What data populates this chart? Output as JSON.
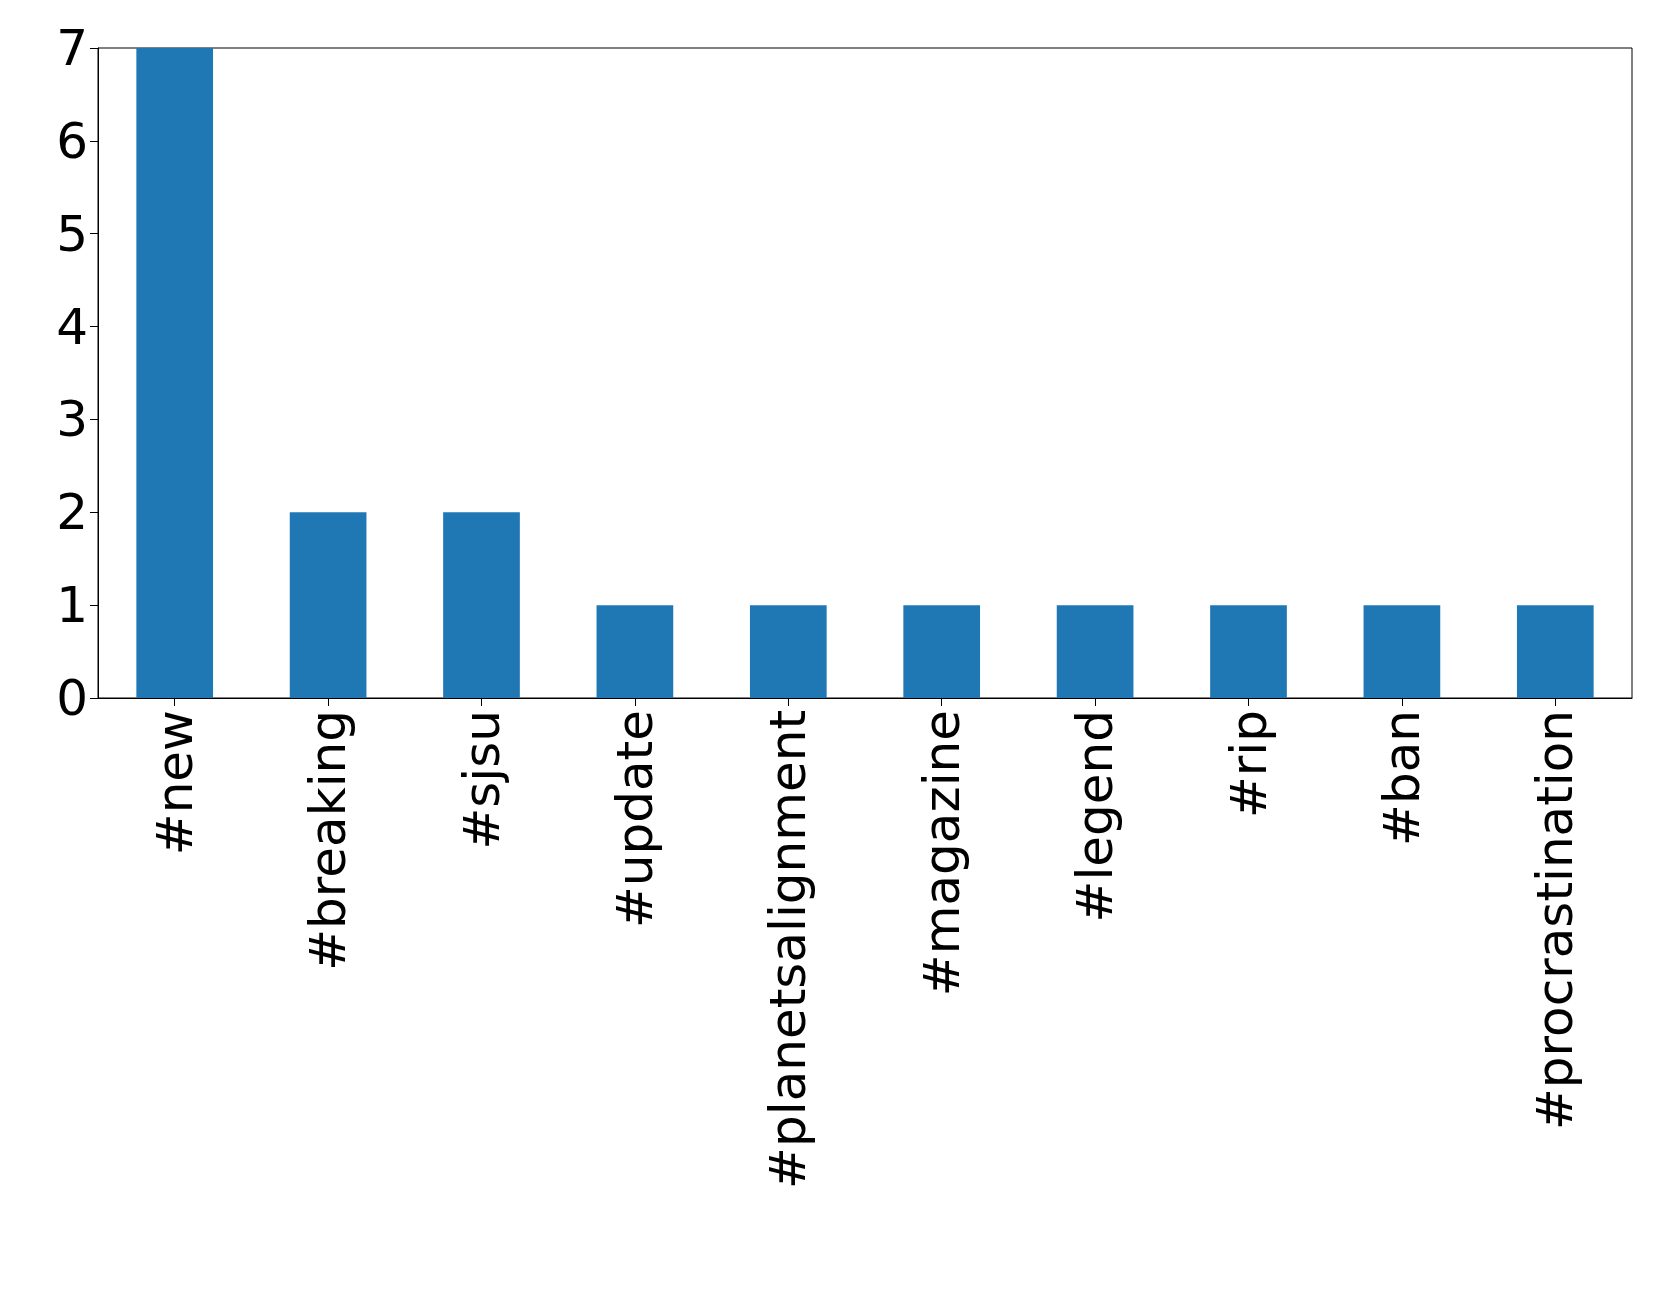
{
  "chart_data": {
    "type": "bar",
    "categories": [
      "#new",
      "#breaking",
      "#sjsu",
      "#update",
      "#planetsalignment",
      "#magazine",
      "#legend",
      "#rip",
      "#ban",
      "#procrastination"
    ],
    "values": [
      7,
      2,
      2,
      1,
      1,
      1,
      1,
      1,
      1,
      1
    ],
    "color": "#1f77b4",
    "ylim": [
      0,
      7
    ],
    "yticks": [
      0,
      1,
      2,
      3,
      4,
      5,
      6,
      7
    ],
    "grid": false
  }
}
